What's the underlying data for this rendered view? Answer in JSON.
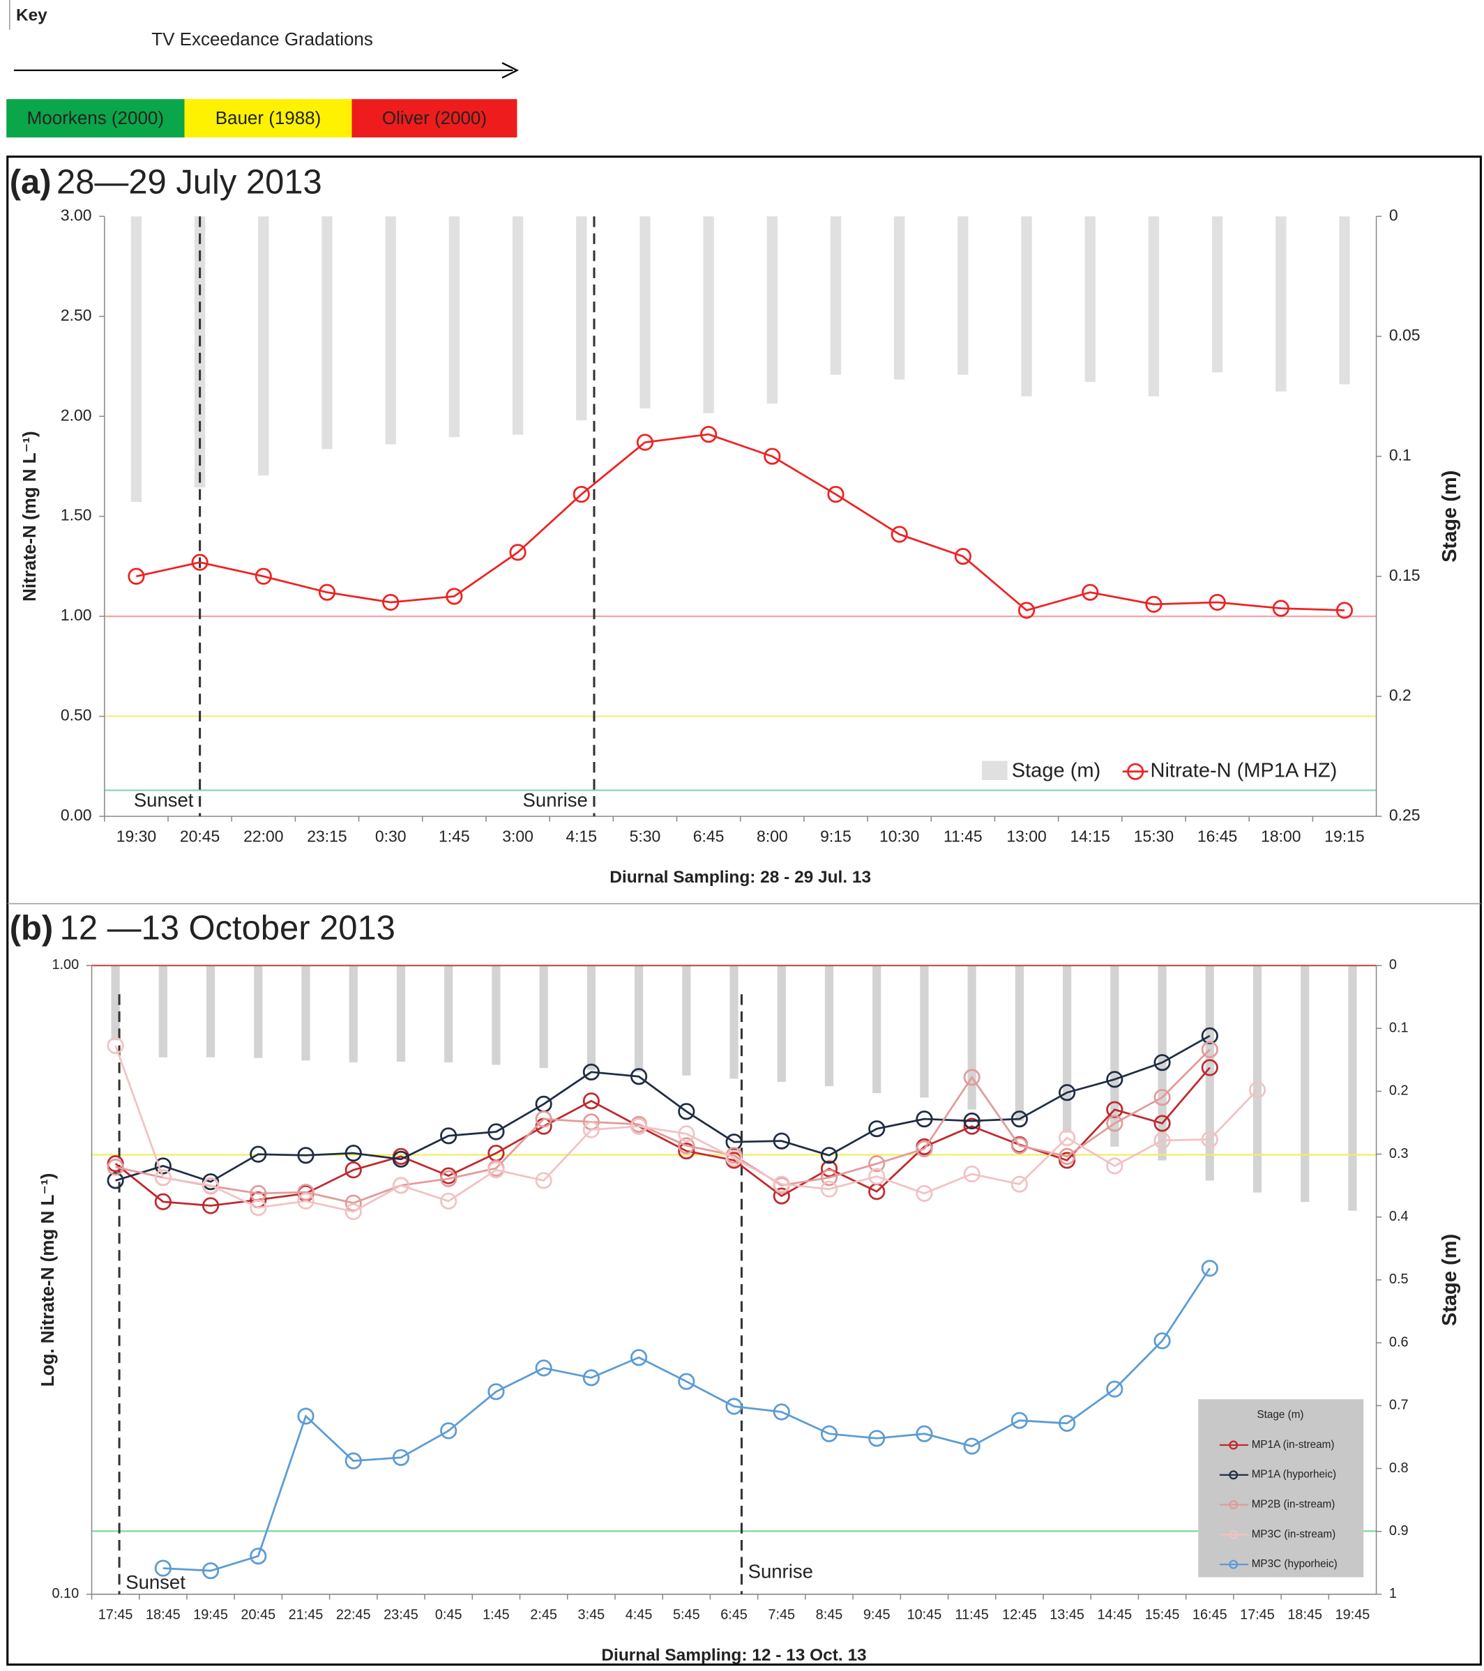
{
  "key": {
    "title": "Key",
    "arrow_label": "TV Exceedance Gradations",
    "items": [
      {
        "label": "Moorkens (2000)",
        "color": "#0aa64a"
      },
      {
        "label": "Bauer (1988)",
        "color": "#fff200"
      },
      {
        "label": "Oliver (2000)",
        "color": "#ee1c1c"
      }
    ]
  },
  "chart_data": [
    {
      "type": "line",
      "panel": "(a)",
      "title": "28—29 July 2013",
      "x_label": "Diurnal Sampling: 28 - 29 Jul. 13",
      "y_label": "Nitrate-N (mg N L⁻¹)",
      "y2_label": "Stage (m)",
      "categories": [
        "19:30",
        "20:45",
        "22:00",
        "23:15",
        "0:30",
        "1:45",
        "3:00",
        "4:15",
        "5:30",
        "6:45",
        "8:00",
        "9:15",
        "10:30",
        "11:45",
        "13:00",
        "14:15",
        "15:30",
        "16:45",
        "18:00",
        "19:15"
      ],
      "series": [
        {
          "name": "Nitrate-N (MP1A HZ)",
          "color": "#ee2222",
          "values": [
            1.2,
            1.27,
            1.2,
            1.12,
            1.07,
            1.1,
            1.32,
            1.61,
            1.87,
            1.91,
            1.8,
            1.61,
            1.41,
            1.3,
            1.03,
            1.12,
            1.06,
            1.07,
            1.04,
            1.03
          ]
        }
      ],
      "stage": {
        "name": "Stage (m)",
        "color": "#e0e0e0",
        "axis": "y2",
        "values": [
          0.119,
          0.113,
          0.108,
          0.097,
          0.095,
          0.092,
          0.091,
          0.085,
          0.08,
          0.082,
          0.078,
          0.066,
          0.068,
          0.066,
          0.075,
          0.069,
          0.075,
          0.065,
          0.073,
          0.07
        ]
      },
      "ylim": [
        0,
        3
      ],
      "yticks": [
        {
          "value": 0,
          "label": "0.00"
        },
        {
          "value": 0.5,
          "label": "0.50"
        },
        {
          "value": 1,
          "label": "1.00"
        },
        {
          "value": 1.5,
          "label": "1.50"
        },
        {
          "value": 2,
          "label": "2.00"
        },
        {
          "value": 2.5,
          "label": "2.50"
        },
        {
          "value": 3,
          "label": "3.00"
        }
      ],
      "y2lim": [
        0,
        0.25
      ],
      "y2_reversed": true,
      "y2ticks": [
        0,
        0.05,
        0.1,
        0.15,
        0.2,
        0.25
      ],
      "thresholds": [
        {
          "value": 1,
          "color": "#f4a5a5"
        },
        {
          "value": 0.5,
          "color": "#f4ee80"
        },
        {
          "value": 0.13,
          "color": "#8fd6c0"
        }
      ],
      "annotations": [
        {
          "label": "Sunset",
          "x": 1.5
        },
        {
          "label": "Sunrise",
          "x": 7.7
        }
      ],
      "legend": "lower right"
    },
    {
      "type": "line",
      "panel": "(b)",
      "title": "12 —13 October  2013",
      "x_label": "Diurnal Sampling: 12 - 13 Oct. 13",
      "y_label": "Log. Nitrate-N (mg N L⁻¹)",
      "y2_label": "Stage (m)",
      "categories": [
        "17:45",
        "18:45",
        "19:45",
        "20:45",
        "21:45",
        "22:45",
        "23:45",
        "0:45",
        "1:45",
        "2:45",
        "3:45",
        "4:45",
        "5:45",
        "6:45",
        "7:45",
        "8:45",
        "9:45",
        "10:45",
        "11:45",
        "12:45",
        "13:45",
        "14:45",
        "15:45",
        "16:45",
        "17:45",
        "18:45",
        "19:45"
      ],
      "series": [
        {
          "name": "MP1A (in-stream)",
          "color": "#c0282d",
          "values": [
            0.484,
            0.421,
            0.415,
            0.424,
            0.434,
            0.473,
            0.497,
            0.463,
            0.503,
            0.555,
            0.609,
            0.555,
            0.507,
            0.49,
            0.43,
            0.475,
            0.437,
            0.515,
            0.555,
            0.519,
            0.49,
            0.59,
            0.561,
            0.688,
            null,
            null,
            null
          ]
        },
        {
          "name": "MP1A (hyporheic)",
          "color": "#1f2d44",
          "values": [
            0.455,
            0.48,
            0.453,
            0.501,
            0.499,
            0.503,
            0.492,
            0.536,
            0.544,
            0.602,
            0.677,
            0.666,
            0.586,
            0.524,
            0.526,
            0.499,
            0.55,
            0.57,
            0.566,
            0.57,
            0.628,
            0.659,
            0.701,
            0.773,
            null,
            null,
            null
          ]
        },
        {
          "name": "MP2B (in-stream)",
          "color": "#e39a9a",
          "values": [
            0.478,
            0.46,
            0.446,
            0.434,
            0.436,
            0.419,
            0.447,
            0.458,
            0.476,
            0.57,
            0.564,
            0.559,
            0.517,
            0.499,
            0.447,
            0.46,
            0.484,
            0.511,
            0.664,
            0.517,
            0.497,
            0.561,
            0.617,
            0.735,
            null,
            null,
            null
          ]
        },
        {
          "name": "MP3C (in-stream)",
          "color": "#f2c2c2",
          "values": [
            0.746,
            0.46,
            0.447,
            0.412,
            0.422,
            0.406,
            0.447,
            0.422,
            0.473,
            0.455,
            0.548,
            0.555,
            0.54,
            0.494,
            0.449,
            0.441,
            0.462,
            0.434,
            0.466,
            0.449,
            0.532,
            0.48,
            0.527,
            0.529,
            0.634,
            null,
            null
          ]
        },
        {
          "name": "MP3C (hyporheic)",
          "color": "#5b9bd5",
          "values": [
            null,
            0.11,
            0.109,
            0.115,
            0.192,
            0.163,
            0.165,
            0.182,
            0.21,
            0.229,
            0.221,
            0.238,
            0.218,
            0.199,
            0.195,
            0.18,
            0.177,
            0.18,
            0.172,
            0.189,
            0.187,
            0.212,
            0.253,
            0.33,
            null,
            null,
            null
          ]
        }
      ],
      "stage": {
        "color": "#d3d3d3",
        "axis": "y2",
        "values": [
          0.119,
          0.146,
          0.146,
          0.147,
          0.151,
          0.154,
          0.153,
          0.154,
          0.158,
          0.163,
          0.166,
          0.169,
          0.175,
          0.18,
          0.185,
          0.192,
          0.203,
          0.21,
          0.229,
          0.247,
          0.266,
          0.288,
          0.31,
          0.342,
          0.361,
          0.376,
          0.39
        ]
      },
      "ylim": [
        0.1,
        1
      ],
      "ylog": true,
      "yticks": [
        {
          "value": 0.1,
          "label": "0.10"
        },
        {
          "value": 1,
          "label": "1.00"
        }
      ],
      "y2lim": [
        0,
        1
      ],
      "y2_reversed": true,
      "y2ticks": [
        0,
        0.1,
        0.2,
        0.3,
        0.4,
        0.5,
        0.6,
        0.7,
        0.8,
        0.9,
        1
      ],
      "thresholds": [
        {
          "value": 1,
          "color": "#d05050"
        },
        {
          "value": 0.5,
          "color": "#f4ee60"
        },
        {
          "value": 0.126,
          "color": "#7fd69a"
        }
      ],
      "annotations": [
        {
          "label": "Sunset",
          "x": 0.58
        },
        {
          "label": "Sunrise",
          "x": 13.66
        }
      ],
      "legend_title": "Stage (m)",
      "legend": "lower right"
    }
  ]
}
